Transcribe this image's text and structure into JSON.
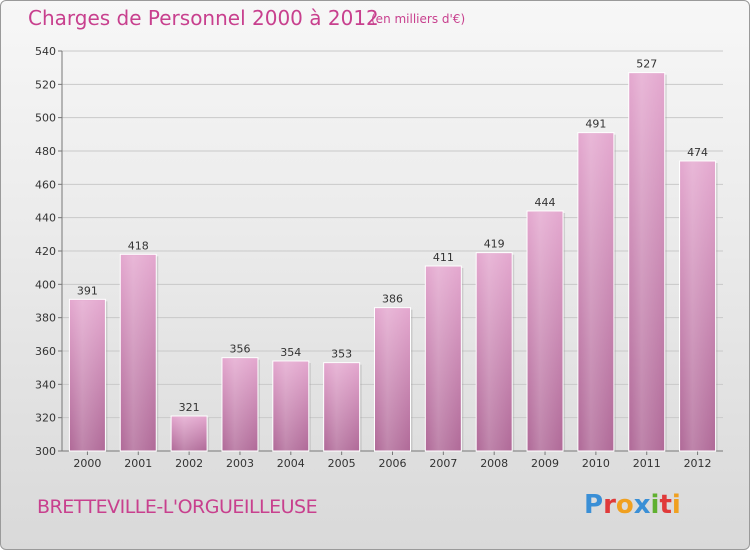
{
  "header": {
    "title": "Charges de Personnel 2000 à 2012",
    "subtitle": "(en milliers d'€)"
  },
  "footer": {
    "commune": "BRETTEVILLE-L'ORGUEILLEUSE",
    "logo_text": "Proxiti",
    "logo_colors": [
      "#3a8fd6",
      "#e03a3a",
      "#f0a020",
      "#3a8fd6",
      "#60b030",
      "#e03a3a",
      "#f0a020"
    ]
  },
  "chart_data": {
    "type": "bar",
    "title": "Charges de Personnel 2000 à 2012",
    "subtitle": "(en milliers d'€)",
    "xlabel": "",
    "ylabel": "",
    "categories": [
      "2000",
      "2001",
      "2002",
      "2003",
      "2004",
      "2005",
      "2006",
      "2007",
      "2008",
      "2009",
      "2010",
      "2011",
      "2012"
    ],
    "values": [
      391,
      418,
      321,
      356,
      354,
      353,
      386,
      411,
      419,
      444,
      491,
      527,
      474
    ],
    "ylim": [
      300,
      540
    ],
    "yticks": [
      300,
      320,
      340,
      360,
      380,
      400,
      420,
      440,
      460,
      480,
      500,
      520,
      540
    ],
    "grid": true,
    "bar_color": "#c8609e",
    "data_labels": true
  }
}
